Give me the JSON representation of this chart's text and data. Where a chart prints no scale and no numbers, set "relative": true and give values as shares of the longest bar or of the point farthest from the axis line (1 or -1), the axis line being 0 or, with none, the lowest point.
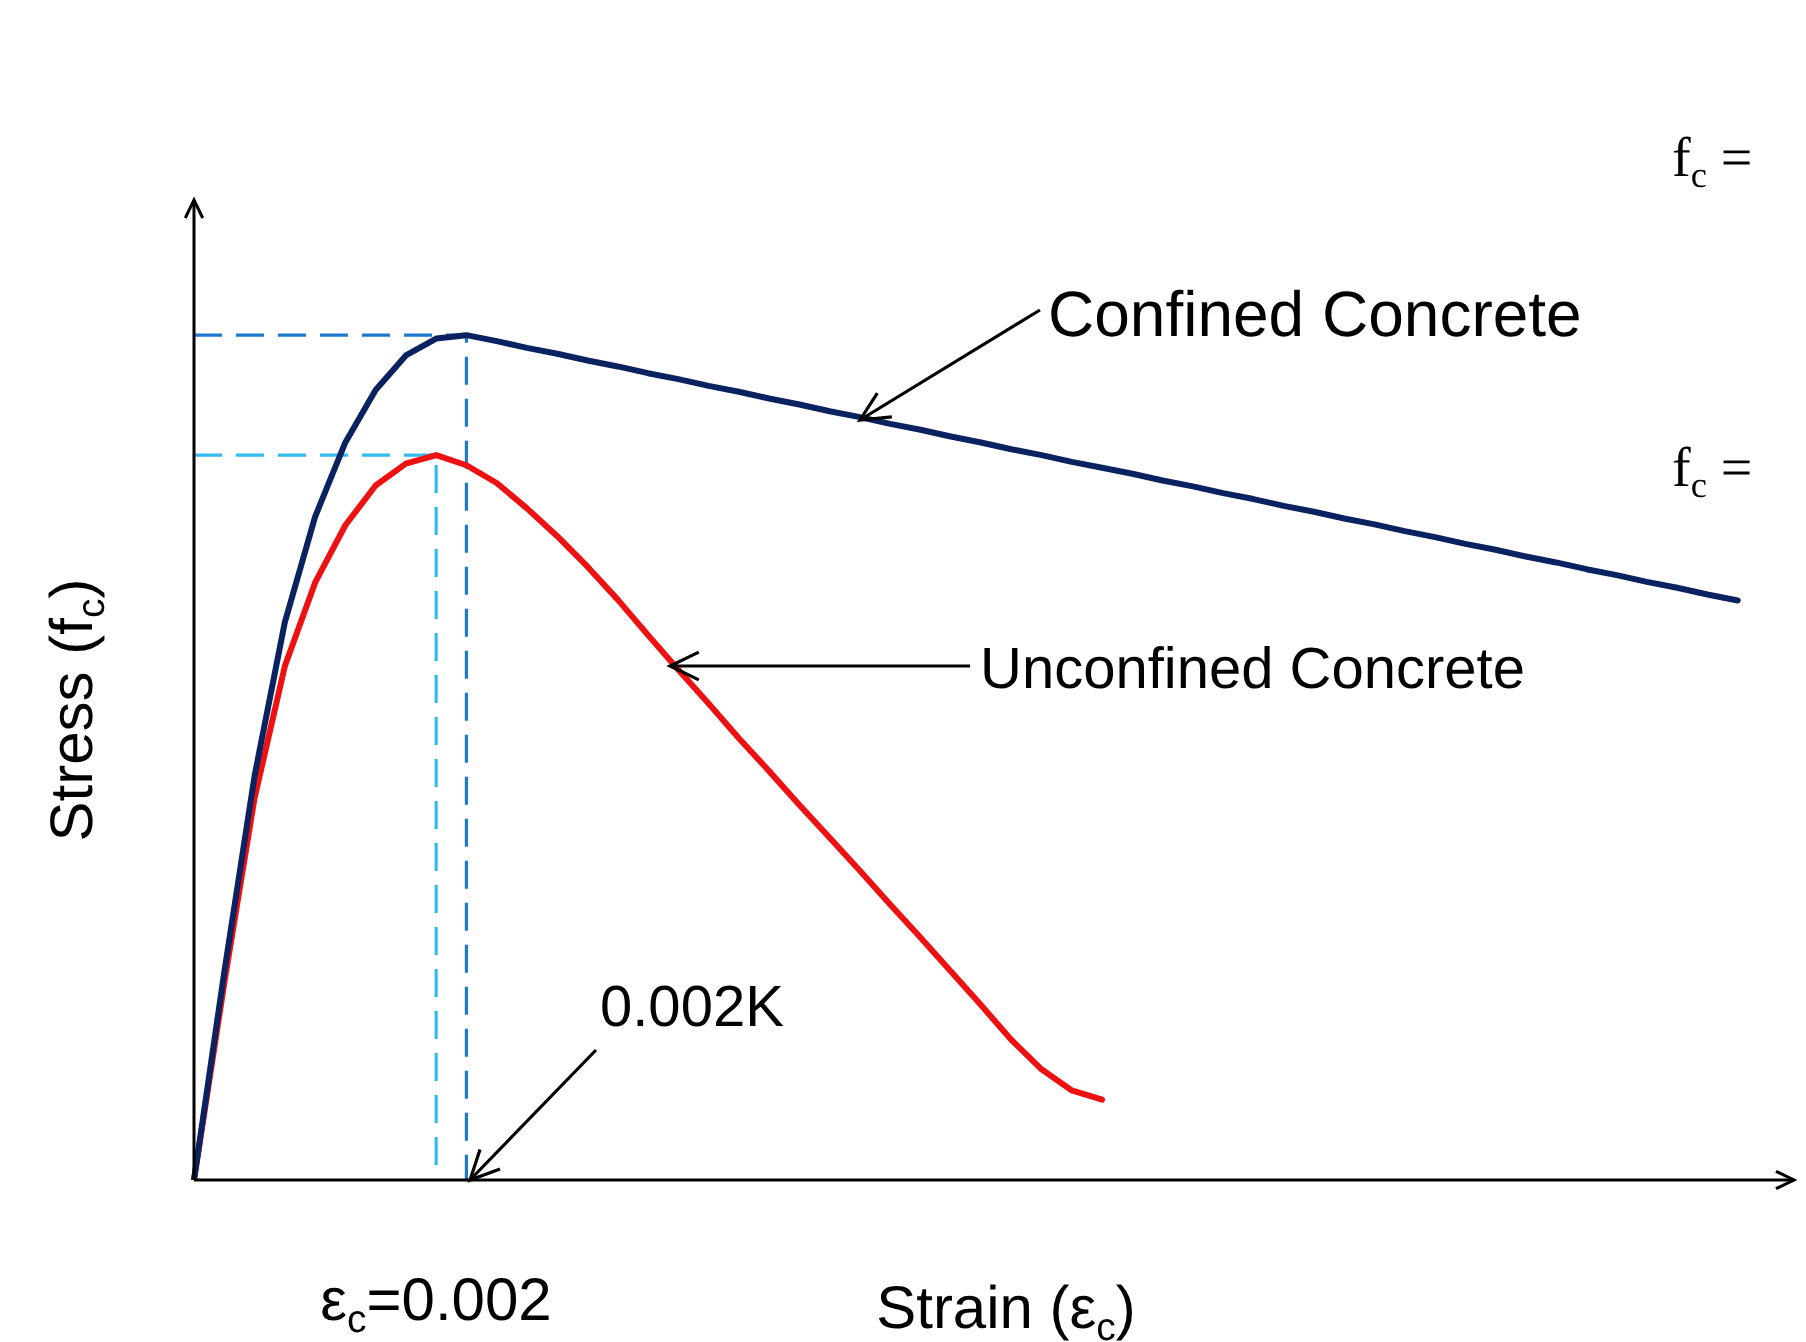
{
  "chart_data": {
    "type": "line",
    "relative": true,
    "xlabel": "Strain (ε$_{c}$)",
    "ylabel": "Stress (f$_{c}$)",
    "categories": [
      null,
      null,
      null,
      null,
      null,
      null,
      null,
      null,
      null,
      null,
      null,
      null,
      null,
      null,
      null,
      null,
      null,
      null,
      null,
      null,
      null,
      null,
      null,
      null,
      null,
      null,
      null,
      null,
      null,
      null,
      null,
      null,
      null,
      null,
      null,
      null,
      null,
      null,
      null,
      null,
      null,
      null,
      null,
      null,
      null,
      null,
      null,
      null,
      null,
      null,
      null,
      null,
      null
    ],
    "marker": "none",
    "grid": false,
    "legend": false,
    "series": [
      {
        "color": "#0b2260",
        "values": [
          0,
          0.246,
          0.478,
          0.66,
          0.785,
          0.873,
          0.935,
          0.976,
          0.996,
          1,
          0.993,
          0.985,
          0.978,
          0.97,
          0.963,
          0.955,
          0.948,
          0.94,
          0.933,
          0.925,
          0.918,
          0.91,
          0.903,
          0.895,
          0.888,
          0.88,
          0.873,
          0.865,
          0.858,
          0.85,
          0.843,
          0.836,
          0.828,
          0.821,
          0.813,
          0.806,
          0.798,
          0.791,
          0.783,
          0.776,
          0.768,
          0.761,
          0.753,
          0.746,
          0.738,
          0.731,
          0.723,
          0.716,
          0.708,
          0.701,
          0.693,
          0.686,
          null
        ]
      },
      {
        "color": "#ee1111",
        "values": [
          0,
          0.233,
          0.452,
          0.608,
          0.707,
          0.775,
          0.822,
          0.848,
          0.858,
          0.846,
          0.825,
          0.795,
          0.762,
          0.726,
          0.687,
          0.645,
          0.604,
          0.564,
          0.523,
          0.484,
          0.444,
          0.405,
          0.366,
          0.326,
          0.287,
          0.247,
          0.207,
          0.166,
          0.131,
          0.106,
          0.095,
          null,
          null,
          null,
          null,
          null,
          null,
          null,
          null,
          null,
          null,
          null,
          null,
          null,
          null,
          null,
          null,
          null,
          null,
          null,
          null,
          null,
          null
        ]
      }
    ],
    "ref_lines": [
      {
        "axis": "y",
        "value": 1,
        "color": "#1f77d0",
        "line_style": "dashed"
      },
      {
        "axis": "y",
        "value": 0.858,
        "color": "#33bbee",
        "line_style": "dashed"
      }
    ],
    "annotations": [
      "Confined Concrete",
      "Unconfined Concrete",
      "0.002K",
      "ε$_{c}$=0.002",
      "f$_{c}$ =",
      "f$_{c}$ ="
    ]
  }
}
